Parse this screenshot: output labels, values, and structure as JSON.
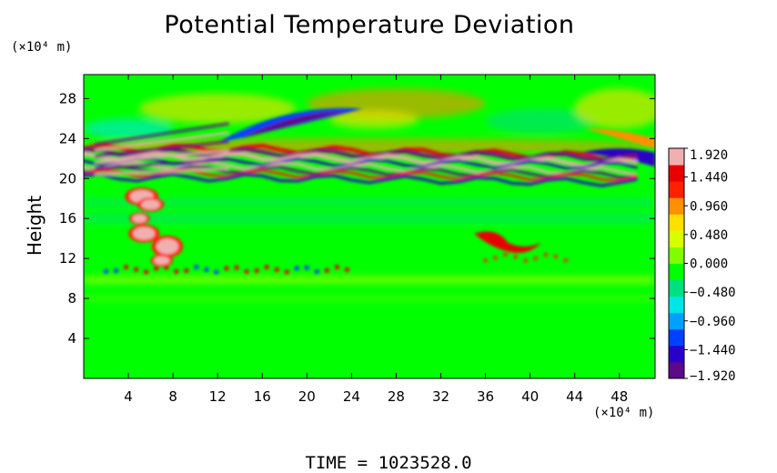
{
  "chart_data": {
    "type": "heatmap",
    "title": "Potential Temperature Deviation",
    "ylabel": "Height",
    "xlabel": "",
    "x_unit_label": "(×10⁴ m)",
    "y_unit_label": "(×10⁴ m)",
    "xlim": [
      0,
      51.2
    ],
    "ylim": [
      0,
      30.4
    ],
    "x_ticks": [
      4,
      8,
      12,
      16,
      20,
      24,
      28,
      32,
      36,
      40,
      44,
      48
    ],
    "y_ticks": [
      4,
      8,
      12,
      16,
      20,
      24,
      28
    ],
    "colorbar": {
      "range": [
        -1.92,
        1.92
      ],
      "tick_labels": [
        "1.920",
        "1.440",
        "0.960",
        "0.480",
        "0.000",
        "−0.480",
        "−0.960",
        "−1.440",
        "−1.920"
      ],
      "tick_values": [
        1.92,
        1.44,
        0.96,
        0.48,
        0.0,
        -0.48,
        -0.96,
        -1.44,
        -1.92
      ],
      "colors": [
        "#5c0a8a",
        "#2a00c8",
        "#0040ff",
        "#00a0ff",
        "#00e6e6",
        "#00e080",
        "#00ff00",
        "#80ff00",
        "#d8ff00",
        "#ffe000",
        "#ff9000",
        "#ff2000",
        "#e80000",
        "#f0b0b0"
      ]
    },
    "features": [
      {
        "name": "upper wave layer",
        "x": [
          0,
          51.2
        ],
        "y": [
          19.5,
          23.5
        ],
        "value_range": [
          -1.92,
          1.92
        ]
      },
      {
        "name": "positive region upper left",
        "x": [
          2,
          8
        ],
        "y": [
          11,
          19
        ],
        "value": 1.9
      },
      {
        "name": "positive patch mid right",
        "x": [
          35,
          41
        ],
        "y": [
          12.5,
          15
        ],
        "value": 1.6
      },
      {
        "name": "negative arc aloft",
        "x": [
          12,
          24
        ],
        "y": [
          23,
          27.5
        ],
        "value": -1.5
      },
      {
        "name": "negative arc aloft right",
        "x": [
          44,
          51.2
        ],
        "y": [
          21,
          24
        ],
        "value": -1.5
      },
      {
        "name": "positive band near y=11",
        "x": [
          2,
          24
        ],
        "y": [
          10.5,
          11.5
        ],
        "value": 1.2
      }
    ]
  },
  "time_label": "TIME",
  "time_eq": "=",
  "time_value": "1023528.0"
}
